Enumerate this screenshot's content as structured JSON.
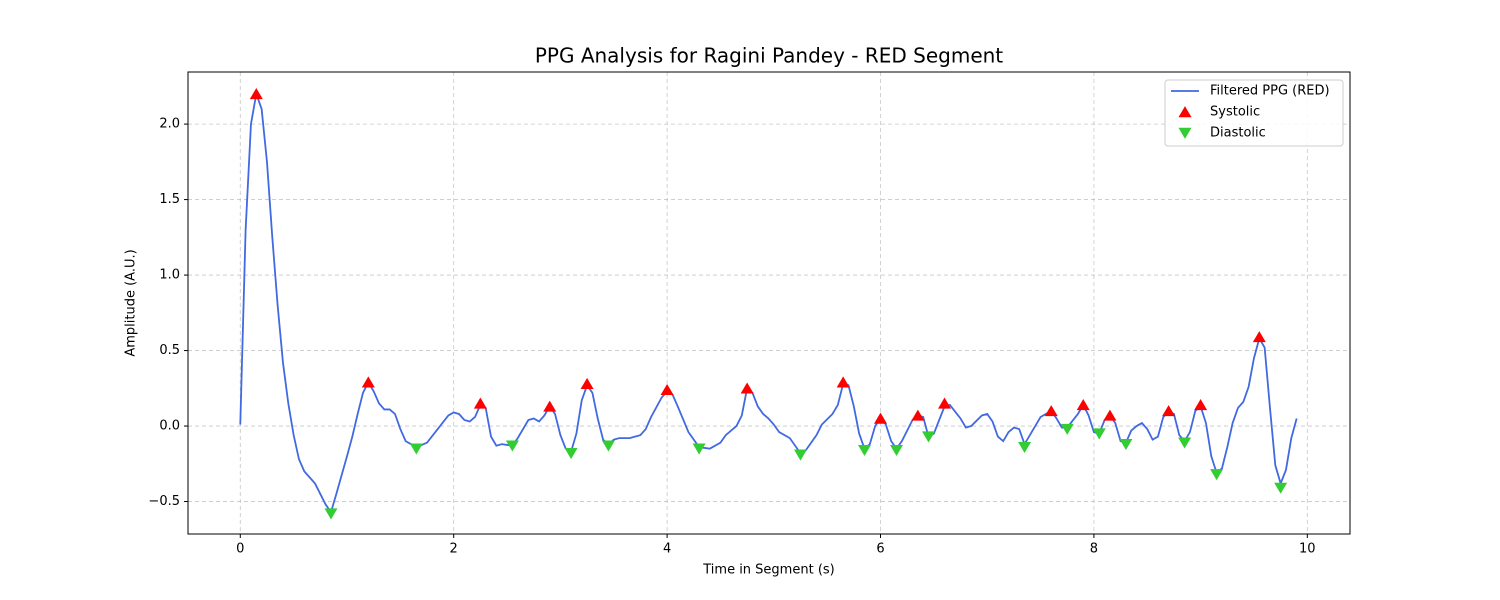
{
  "chart_data": {
    "type": "line",
    "title": "PPG Analysis for Ragini Pandey - RED Segment",
    "xlabel": "Time in Segment (s)",
    "ylabel": "Amplitude (A.U.)",
    "xlim": [
      -0.49,
      10.4
    ],
    "ylim": [
      -0.715,
      2.345
    ],
    "xticks": [
      0,
      2,
      4,
      6,
      8,
      10
    ],
    "yticks": [
      {
        "value": -0.5,
        "label": "−0.5"
      },
      {
        "value": 0,
        "label": "0.0"
      },
      0.5,
      {
        "value": 1,
        "label": "1.0"
      },
      1.5,
      {
        "value": 2,
        "label": "2.0"
      }
    ],
    "grid": true,
    "legend": "upper right",
    "series": [
      {
        "name": "Filtered PPG (RED)",
        "type": "line",
        "color": "#4169e1",
        "x": [
          0,
          0.05,
          0.1,
          0.15,
          0.2,
          0.25,
          0.3,
          0.35,
          0.4,
          0.45,
          0.5,
          0.55,
          0.6,
          0.7,
          0.8,
          0.85,
          0.9,
          1.0,
          1.05,
          1.1,
          1.15,
          1.2,
          1.25,
          1.3,
          1.35,
          1.4,
          1.45,
          1.5,
          1.55,
          1.65,
          1.75,
          1.85,
          1.95,
          2.0,
          2.05,
          2.1,
          2.15,
          2.2,
          2.25,
          2.3,
          2.35,
          2.4,
          2.45,
          2.55,
          2.6,
          2.7,
          2.75,
          2.8,
          2.85,
          2.9,
          2.95,
          3.0,
          3.05,
          3.1,
          3.15,
          3.2,
          3.25,
          3.3,
          3.35,
          3.4,
          3.45,
          3.5,
          3.55,
          3.65,
          3.75,
          3.8,
          3.85,
          3.95,
          4.0,
          4.05,
          4.1,
          4.2,
          4.3,
          4.4,
          4.5,
          4.55,
          4.65,
          4.7,
          4.75,
          4.8,
          4.85,
          4.9,
          4.95,
          5.0,
          5.05,
          5.15,
          5.25,
          5.3,
          5.4,
          5.45,
          5.55,
          5.6,
          5.65,
          5.7,
          5.75,
          5.8,
          5.85,
          5.9,
          5.95,
          6.0,
          6.05,
          6.1,
          6.15,
          6.2,
          6.3,
          6.35,
          6.4,
          6.45,
          6.5,
          6.6,
          6.65,
          6.75,
          6.8,
          6.85,
          6.95,
          7.0,
          7.05,
          7.1,
          7.15,
          7.2,
          7.25,
          7.3,
          7.35,
          7.45,
          7.5,
          7.6,
          7.65,
          7.7,
          7.75,
          7.85,
          7.9,
          7.95,
          8.0,
          8.05,
          8.1,
          8.15,
          8.2,
          8.25,
          8.3,
          8.35,
          8.4,
          8.45,
          8.5,
          8.55,
          8.6,
          8.65,
          8.7,
          8.75,
          8.8,
          8.85,
          8.9,
          8.95,
          9.0,
          9.05,
          9.1,
          9.15,
          9.2,
          9.25,
          9.3,
          9.35,
          9.4,
          9.45,
          9.5,
          9.55,
          9.6,
          9.65,
          9.7,
          9.75,
          9.8,
          9.85,
          9.9
        ],
        "values": [
          0.01,
          1.3,
          2.0,
          2.2,
          2.1,
          1.75,
          1.25,
          0.8,
          0.42,
          0.15,
          -0.06,
          -0.22,
          -0.3,
          -0.38,
          -0.52,
          -0.57,
          -0.45,
          -0.2,
          -0.07,
          0.08,
          0.22,
          0.29,
          0.23,
          0.15,
          0.11,
          0.11,
          0.08,
          -0.02,
          -0.1,
          -0.14,
          -0.11,
          -0.02,
          0.07,
          0.09,
          0.08,
          0.04,
          0.03,
          0.06,
          0.14,
          0.12,
          -0.07,
          -0.13,
          -0.12,
          -0.13,
          -0.08,
          0.04,
          0.05,
          0.03,
          0.07,
          0.13,
          0.08,
          -0.06,
          -0.15,
          -0.17,
          -0.05,
          0.17,
          0.27,
          0.22,
          0.05,
          -0.09,
          -0.12,
          -0.09,
          -0.08,
          -0.08,
          -0.06,
          -0.02,
          0.06,
          0.19,
          0.23,
          0.21,
          0.13,
          -0.04,
          -0.14,
          -0.15,
          -0.11,
          -0.06,
          0.0,
          0.07,
          0.25,
          0.22,
          0.13,
          0.08,
          0.05,
          0.01,
          -0.04,
          -0.08,
          -0.18,
          -0.16,
          -0.06,
          0.01,
          0.08,
          0.14,
          0.28,
          0.27,
          0.13,
          -0.05,
          -0.15,
          -0.12,
          0.0,
          0.05,
          0.01,
          -0.1,
          -0.15,
          -0.1,
          0.04,
          0.07,
          0.06,
          -0.07,
          -0.05,
          0.13,
          0.14,
          0.05,
          -0.01,
          0.0,
          0.07,
          0.08,
          0.03,
          -0.07,
          -0.1,
          -0.04,
          -0.01,
          -0.02,
          -0.12,
          0.0,
          0.06,
          0.1,
          0.05,
          -0.01,
          -0.01,
          0.08,
          0.14,
          0.07,
          -0.04,
          -0.05,
          0.04,
          0.07,
          0.02,
          -0.1,
          -0.11,
          -0.03,
          0.0,
          0.02,
          -0.02,
          -0.09,
          -0.07,
          0.06,
          0.09,
          0.08,
          -0.06,
          -0.1,
          -0.04,
          0.1,
          0.13,
          0.02,
          -0.2,
          -0.31,
          -0.28,
          -0.14,
          0.02,
          0.12,
          0.16,
          0.26,
          0.45,
          0.58,
          0.52,
          0.12,
          -0.26,
          -0.38,
          -0.29,
          -0.08,
          0.05
        ]
      },
      {
        "name": "Systolic",
        "type": "scatter",
        "marker": "up",
        "color": "#ff0000",
        "x": [
          0.15,
          1.2,
          2.25,
          2.9,
          3.25,
          4.0,
          4.75,
          5.65,
          6.0,
          6.35,
          6.6,
          7.6,
          7.9,
          8.15,
          8.7,
          9.0,
          9.55
        ],
        "values": [
          2.2,
          0.29,
          0.15,
          0.13,
          0.28,
          0.24,
          0.25,
          0.29,
          0.05,
          0.07,
          0.15,
          0.1,
          0.14,
          0.07,
          0.1,
          0.14,
          0.59
        ]
      },
      {
        "name": "Diastolic",
        "type": "scatter",
        "marker": "down",
        "color": "#32cd32",
        "x": [
          0.85,
          1.65,
          2.55,
          3.1,
          3.45,
          4.3,
          5.25,
          5.85,
          6.15,
          6.45,
          7.35,
          7.75,
          8.05,
          8.3,
          8.85,
          9.15,
          9.75
        ],
        "values": [
          -0.58,
          -0.15,
          -0.13,
          -0.18,
          -0.13,
          -0.15,
          -0.19,
          -0.16,
          -0.16,
          -0.07,
          -0.14,
          -0.02,
          -0.05,
          -0.12,
          -0.11,
          -0.32,
          -0.41
        ]
      }
    ]
  }
}
